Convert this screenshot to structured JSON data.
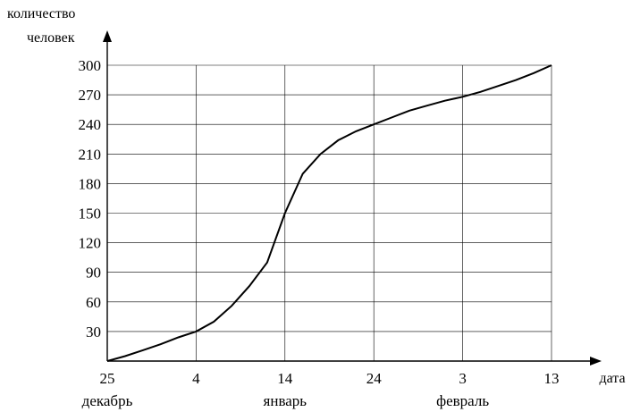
{
  "chart_data": {
    "type": "line",
    "xlabel": "дата",
    "ylabel": [
      "количество",
      "человек"
    ],
    "x_ticks": [
      "25",
      "4",
      "14",
      "24",
      "3",
      "13"
    ],
    "x_tick_values": [
      0,
      10,
      20,
      30,
      40,
      50
    ],
    "month_labels": [
      {
        "label": "декабрь",
        "at": 0
      },
      {
        "label": "январь",
        "at": 20
      },
      {
        "label": "февраль",
        "at": 40
      }
    ],
    "y_ticks": [
      30,
      60,
      90,
      120,
      150,
      180,
      210,
      240,
      270,
      300
    ],
    "xlim": [
      0,
      50
    ],
    "ylim": [
      0,
      300
    ],
    "grid": true,
    "series": [
      {
        "x": [
          0,
          2,
          4,
          6,
          8,
          10,
          12,
          14,
          16,
          18,
          20,
          22,
          24,
          26,
          28,
          30,
          32,
          34,
          36,
          38,
          40,
          42,
          44,
          46,
          48,
          50
        ],
        "y": [
          0,
          5,
          11,
          17,
          24,
          30,
          40,
          56,
          76,
          100,
          150,
          190,
          210,
          224,
          233,
          240,
          247,
          254,
          259,
          264,
          268,
          273,
          279,
          285,
          292,
          300
        ]
      }
    ]
  }
}
